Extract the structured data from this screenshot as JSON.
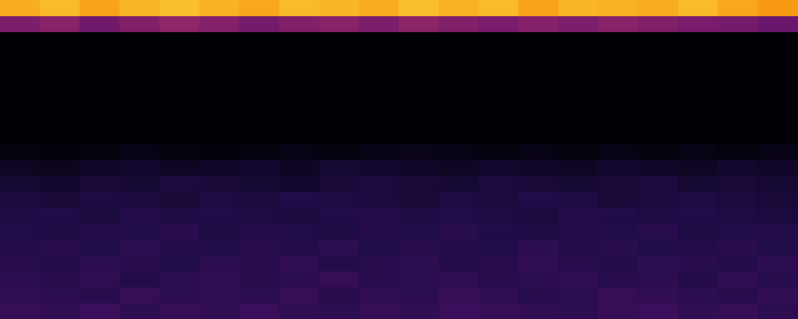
{
  "chart_data": {
    "type": "heatmap",
    "tick_labels": false,
    "grid": false,
    "zlim": [
      0,
      1
    ],
    "cells": [
      [
        0.82,
        0.85,
        0.8,
        0.84,
        0.86,
        0.83,
        0.81,
        0.85,
        0.84,
        0.82,
        0.86,
        0.83,
        0.85,
        0.8,
        0.84,
        0.83,
        0.82,
        0.85,
        0.81,
        0.78
      ],
      [
        0.35,
        0.38,
        0.32,
        0.36,
        0.4,
        0.37,
        0.33,
        0.36,
        0.38,
        0.35,
        0.39,
        0.36,
        0.34,
        0.37,
        0.35,
        0.38,
        0.36,
        0.34,
        0.33,
        0.3
      ],
      [
        0,
        0,
        0,
        0,
        0,
        0,
        0,
        0,
        0,
        0,
        0,
        0,
        0,
        0,
        0,
        0,
        0,
        0,
        0,
        0
      ],
      [
        0,
        0,
        0,
        0,
        0,
        0,
        0,
        0,
        0,
        0,
        0,
        0,
        0,
        0,
        0,
        0,
        0,
        0,
        0,
        0
      ],
      [
        0,
        0,
        0,
        0,
        0,
        0,
        0,
        0,
        0,
        0,
        0,
        0,
        0,
        0,
        0,
        0,
        0,
        0,
        0,
        0
      ],
      [
        0,
        0,
        0,
        0,
        0,
        0,
        0,
        0,
        0,
        0,
        0,
        0,
        0,
        0,
        0,
        0,
        0,
        0,
        0,
        0
      ],
      [
        0,
        0,
        0,
        0,
        0,
        0,
        0,
        0,
        0,
        0,
        0,
        0,
        0,
        0,
        0,
        0,
        0,
        0,
        0,
        0
      ],
      [
        0,
        0,
        0,
        0,
        0,
        0,
        0,
        0,
        0,
        0,
        0,
        0,
        0,
        0,
        0,
        0,
        0,
        0,
        0,
        0
      ],
      [
        0,
        0,
        0,
        0,
        0,
        0,
        0,
        0,
        0,
        0,
        0,
        0,
        0,
        0,
        0,
        0,
        0,
        0,
        0,
        0
      ],
      [
        0.02,
        0.01,
        0.02,
        0.03,
        0.02,
        0.01,
        0.02,
        0.03,
        0.02,
        0.03,
        0.04,
        0.03,
        0.02,
        0.03,
        0.02,
        0.03,
        0.02,
        0.03,
        0.02,
        0.03
      ],
      [
        0.06,
        0.05,
        0.07,
        0.08,
        0.06,
        0.07,
        0.08,
        0.06,
        0.09,
        0.08,
        0.07,
        0.06,
        0.08,
        0.07,
        0.06,
        0.08,
        0.07,
        0.06,
        0.08,
        0.07
      ],
      [
        0.09,
        0.08,
        0.1,
        0.09,
        0.11,
        0.1,
        0.09,
        0.08,
        0.1,
        0.11,
        0.1,
        0.09,
        0.11,
        0.1,
        0.09,
        0.1,
        0.11,
        0.09,
        0.1,
        0.09
      ],
      [
        0.11,
        0.1,
        0.12,
        0.11,
        0.1,
        0.12,
        0.11,
        0.13,
        0.12,
        0.11,
        0.1,
        0.12,
        0.11,
        0.13,
        0.12,
        0.1,
        0.11,
        0.12,
        0.11,
        0.1
      ],
      [
        0.12,
        0.13,
        0.11,
        0.14,
        0.12,
        0.13,
        0.12,
        0.11,
        0.13,
        0.14,
        0.12,
        0.13,
        0.12,
        0.11,
        0.14,
        0.13,
        0.12,
        0.13,
        0.12,
        0.11
      ],
      [
        0.13,
        0.12,
        0.14,
        0.13,
        0.15,
        0.12,
        0.14,
        0.13,
        0.12,
        0.14,
        0.13,
        0.15,
        0.13,
        0.12,
        0.14,
        0.13,
        0.15,
        0.12,
        0.13,
        0.14
      ],
      [
        0.14,
        0.15,
        0.13,
        0.16,
        0.14,
        0.13,
        0.15,
        0.14,
        0.16,
        0.13,
        0.15,
        0.14,
        0.13,
        0.16,
        0.14,
        0.15,
        0.13,
        0.14,
        0.15,
        0.13
      ],
      [
        0.15,
        0.14,
        0.16,
        0.15,
        0.13,
        0.16,
        0.15,
        0.17,
        0.14,
        0.15,
        0.16,
        0.14,
        0.15,
        0.17,
        0.15,
        0.14,
        0.16,
        0.15,
        0.14,
        0.16
      ],
      [
        0.16,
        0.15,
        0.17,
        0.14,
        0.16,
        0.17,
        0.15,
        0.16,
        0.18,
        0.15,
        0.16,
        0.17,
        0.15,
        0.16,
        0.17,
        0.15,
        0.16,
        0.14,
        0.17,
        0.15
      ],
      [
        0.17,
        0.16,
        0.15,
        0.18,
        0.16,
        0.17,
        0.16,
        0.18,
        0.15,
        0.17,
        0.16,
        0.18,
        0.17,
        0.15,
        0.16,
        0.18,
        0.17,
        0.16,
        0.15,
        0.17
      ],
      [
        0.18,
        0.17,
        0.19,
        0.16,
        0.18,
        0.17,
        0.19,
        0.17,
        0.16,
        0.18,
        0.17,
        0.19,
        0.18,
        0.17,
        0.16,
        0.18,
        0.19,
        0.17,
        0.18,
        0.16
      ]
    ]
  }
}
